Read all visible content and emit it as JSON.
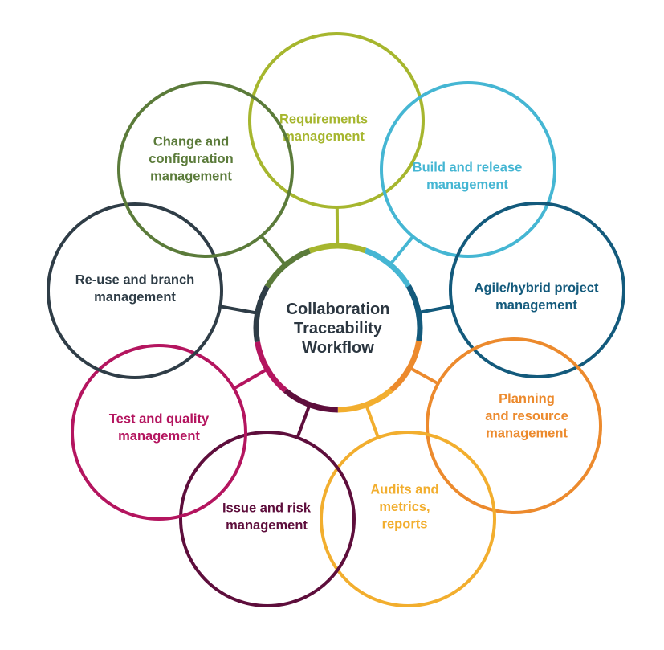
{
  "center": {
    "lines": [
      "Collaboration",
      "Traceability",
      "Workflow"
    ],
    "text_color": "#2b3640"
  },
  "nodes": [
    {
      "id": "requirements",
      "lines": [
        "Requirements",
        "management"
      ],
      "color": "#a6b62e"
    },
    {
      "id": "build-release",
      "lines": [
        "Build and release",
        "management"
      ],
      "color": "#45b6d3"
    },
    {
      "id": "agile-hybrid",
      "lines": [
        "Agile/hybrid project",
        "management"
      ],
      "color": "#135a7c"
    },
    {
      "id": "planning-resource",
      "lines": [
        "Planning",
        "and resource",
        "management"
      ],
      "color": "#ec8a2d"
    },
    {
      "id": "audits-metrics",
      "lines": [
        "Audits and",
        "metrics,",
        "reports"
      ],
      "color": "#f2ae2e"
    },
    {
      "id": "issue-risk",
      "lines": [
        "Issue and risk",
        "management"
      ],
      "color": "#5e0e3c"
    },
    {
      "id": "test-quality",
      "lines": [
        "Test and quality",
        "management"
      ],
      "color": "#b4155f"
    },
    {
      "id": "reuse-branch",
      "lines": [
        "Re-use and branch",
        "management"
      ],
      "color": "#2f3d47"
    },
    {
      "id": "change-config",
      "lines": [
        "Change and",
        "configuration",
        "management"
      ],
      "color": "#5b7b3a"
    }
  ]
}
